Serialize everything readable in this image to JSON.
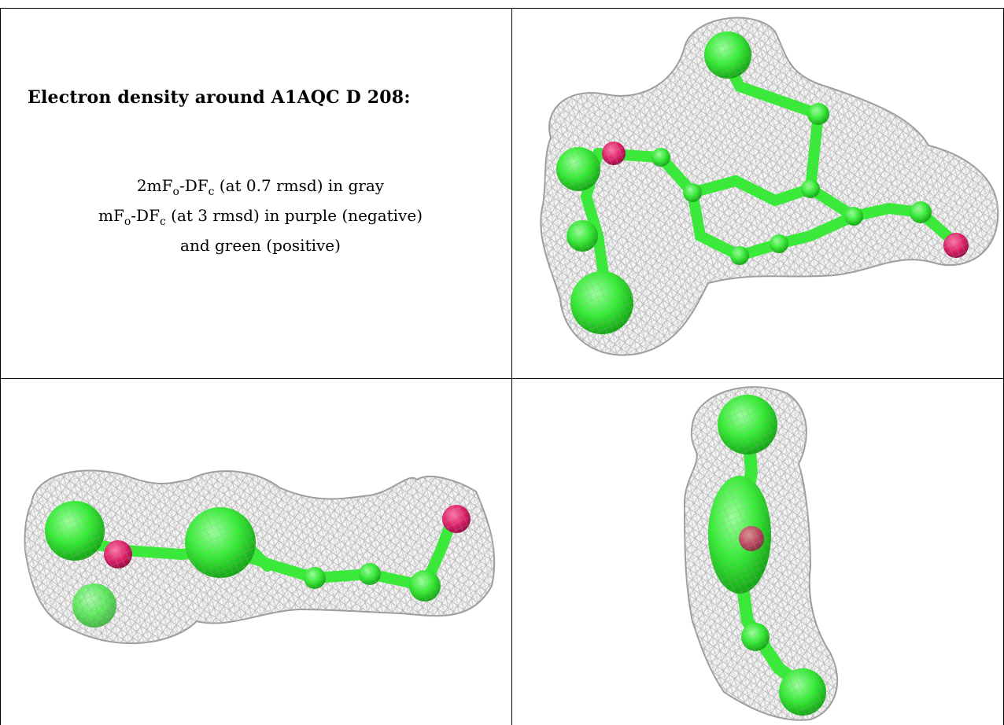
{
  "caption": {
    "title": "Electron density around A1AQC D 208:",
    "line1_a": "2mF",
    "line1_sub1": "o",
    "line1_b": "-DF",
    "line1_sub2": "c",
    "line1_c": " (at 0.7 rmsd) in gray",
    "line2_a": "mF",
    "line2_sub1": "o",
    "line2_b": "-DF",
    "line2_sub2": "c",
    "line2_c": " (at 3 rmsd) in purple (negative)",
    "line3": "and green (positive)"
  },
  "colors": {
    "mesh": "#a9a9a9",
    "atom": "#33ee33",
    "oxygen": "#e0206a",
    "border": "#000000"
  },
  "views": [
    "top-view",
    "side-view-horizontal",
    "side-view-vertical"
  ]
}
